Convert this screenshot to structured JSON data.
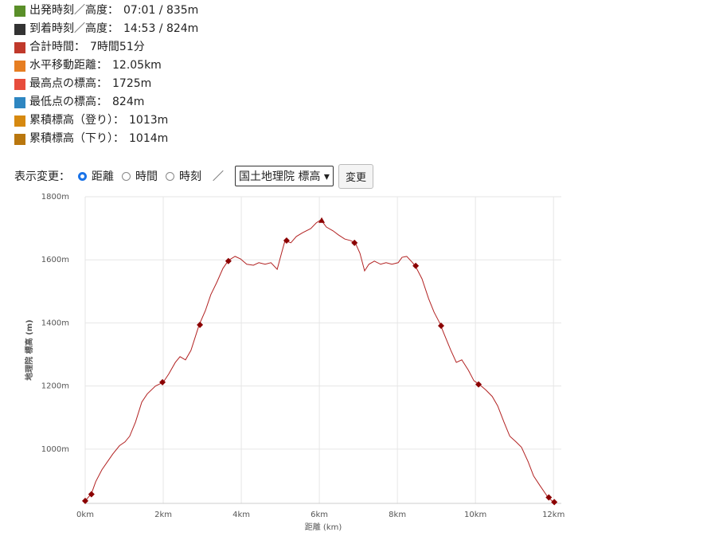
{
  "stats": [
    {
      "label": "出発時刻／高度：",
      "value": "07:01 / 835m"
    },
    {
      "label": "到着時刻／高度：",
      "value": "14:53 / 824m"
    },
    {
      "label": "合計時間：",
      "value": "7時間51分"
    },
    {
      "label": "水平移動距離：",
      "value": "12.05km"
    },
    {
      "label": "最高点の標高：",
      "value": "1725m"
    },
    {
      "label": "最低点の標高：",
      "value": "824m"
    },
    {
      "label": "累積標高（登り）：",
      "value": "1013m"
    },
    {
      "label": "累積標高（下り）：",
      "value": "1014m"
    }
  ],
  "controls": {
    "label": "表示変更：",
    "options": [
      "距離",
      "時間",
      "時刻"
    ],
    "separator": "／",
    "select": "国土地理院 標高",
    "button": "変更"
  },
  "chart_data": {
    "type": "line",
    "color": "#b22222",
    "marker_color": "#8b0000",
    "grid": true,
    "x_label": "距離 (km)",
    "y_label": "地理院 標高 (m)",
    "xlim": [
      0,
      12.2
    ],
    "ylim": [
      828,
      1800
    ],
    "xticks": [
      {
        "value": 0,
        "label": "0km"
      },
      {
        "value": 2,
        "label": "2km"
      },
      {
        "value": 4,
        "label": "4km"
      },
      {
        "value": 6,
        "label": "6km"
      },
      {
        "value": 8,
        "label": "8km"
      },
      {
        "value": 10,
        "label": "10km"
      },
      {
        "value": 12,
        "label": "12km"
      }
    ],
    "yticks": [
      {
        "value": 1000,
        "label": "1000m"
      },
      {
        "value": 1200,
        "label": "1200m"
      },
      {
        "value": 1400,
        "label": "1400m"
      },
      {
        "value": 1600,
        "label": "1600m"
      },
      {
        "value": 1800,
        "label": "1800m"
      }
    ],
    "x": [
      0,
      0.16,
      0.27,
      0.43,
      0.57,
      0.71,
      0.88,
      1.02,
      1.14,
      1.29,
      1.45,
      1.59,
      1.8,
      2.0,
      2.14,
      2.31,
      2.43,
      2.57,
      2.71,
      2.92,
      3.08,
      3.22,
      3.37,
      3.53,
      3.67,
      3.84,
      3.98,
      4.14,
      4.31,
      4.45,
      4.61,
      4.76,
      4.92,
      5.02,
      5.12,
      5.27,
      5.41,
      5.57,
      5.78,
      5.92,
      6.04,
      6.18,
      6.35,
      6.49,
      6.65,
      6.8,
      6.92,
      7.04,
      7.16,
      7.27,
      7.41,
      7.57,
      7.71,
      7.86,
      8.02,
      8.12,
      8.24,
      8.39,
      8.47,
      8.63,
      8.8,
      8.94,
      9.08,
      9.2,
      9.37,
      9.51,
      9.65,
      9.82,
      9.96,
      10.1,
      10.27,
      10.43,
      10.57,
      10.73,
      10.88,
      11.04,
      11.18,
      11.35,
      11.49,
      11.65,
      11.86,
      12.0
    ],
    "values": [
      836,
      859,
      897,
      935,
      960,
      985,
      1011,
      1023,
      1041,
      1086,
      1149,
      1175,
      1200,
      1212,
      1238,
      1275,
      1293,
      1283,
      1313,
      1394,
      1439,
      1490,
      1528,
      1573,
      1598,
      1611,
      1603,
      1586,
      1583,
      1591,
      1586,
      1591,
      1570,
      1616,
      1661,
      1654,
      1674,
      1686,
      1699,
      1717,
      1727,
      1704,
      1692,
      1679,
      1666,
      1661,
      1654,
      1621,
      1565,
      1586,
      1596,
      1586,
      1591,
      1586,
      1591,
      1608,
      1611,
      1591,
      1578,
      1540,
      1477,
      1434,
      1401,
      1364,
      1313,
      1275,
      1283,
      1250,
      1217,
      1205,
      1187,
      1167,
      1137,
      1086,
      1041,
      1023,
      1006,
      960,
      915,
      885,
      847,
      832
    ],
    "markers": {
      "x": [
        0,
        0.16,
        1.98,
        2.94,
        3.67,
        5.16,
        6.9,
        8.47,
        9.12,
        10.08,
        11.88,
        12.02
      ],
      "values": [
        836,
        857,
        1212,
        1394,
        1596,
        1661,
        1654,
        1581,
        1391,
        1205,
        847,
        832
      ]
    },
    "peak": {
      "x": 6.06,
      "value": 1725
    }
  }
}
